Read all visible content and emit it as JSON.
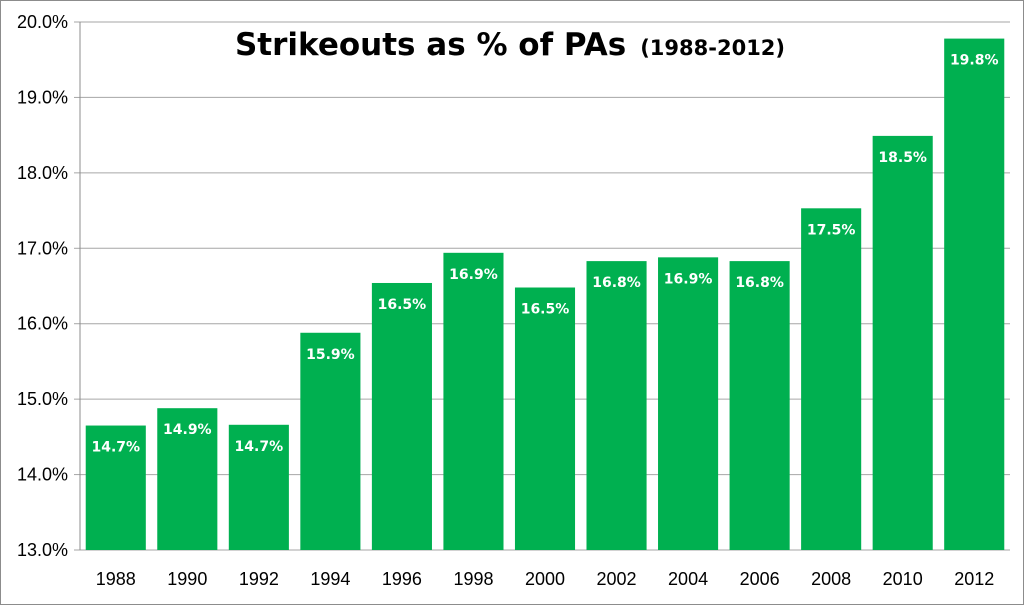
{
  "chart_data": {
    "type": "bar",
    "title": "Strikeouts as % of PAs",
    "subtitle": "(1988-2012)",
    "categories": [
      "1988",
      "1990",
      "1992",
      "1994",
      "1996",
      "1998",
      "2000",
      "2002",
      "2004",
      "2006",
      "2008",
      "2010",
      "2012"
    ],
    "values": [
      14.65,
      14.88,
      14.66,
      15.88,
      16.54,
      16.94,
      16.48,
      16.83,
      16.88,
      16.83,
      17.53,
      18.49,
      19.78
    ],
    "data_labels": [
      "14.7%",
      "14.9%",
      "14.7%",
      "15.9%",
      "16.5%",
      "16.9%",
      "16.5%",
      "16.8%",
      "16.9%",
      "16.8%",
      "17.5%",
      "18.5%",
      "19.8%"
    ],
    "ylim": [
      13.0,
      20.0
    ],
    "y_ticks": [
      13.0,
      14.0,
      15.0,
      16.0,
      17.0,
      18.0,
      19.0,
      20.0
    ],
    "y_tick_labels": [
      "13.0%",
      "14.0%",
      "15.0%",
      "16.0%",
      "17.0%",
      "18.0%",
      "19.0%",
      "20.0%"
    ],
    "xlabel": "",
    "ylabel": "",
    "grid": true,
    "legend": "none",
    "bar_color": "#00b050",
    "gridline_color": "#a6a6a6"
  }
}
